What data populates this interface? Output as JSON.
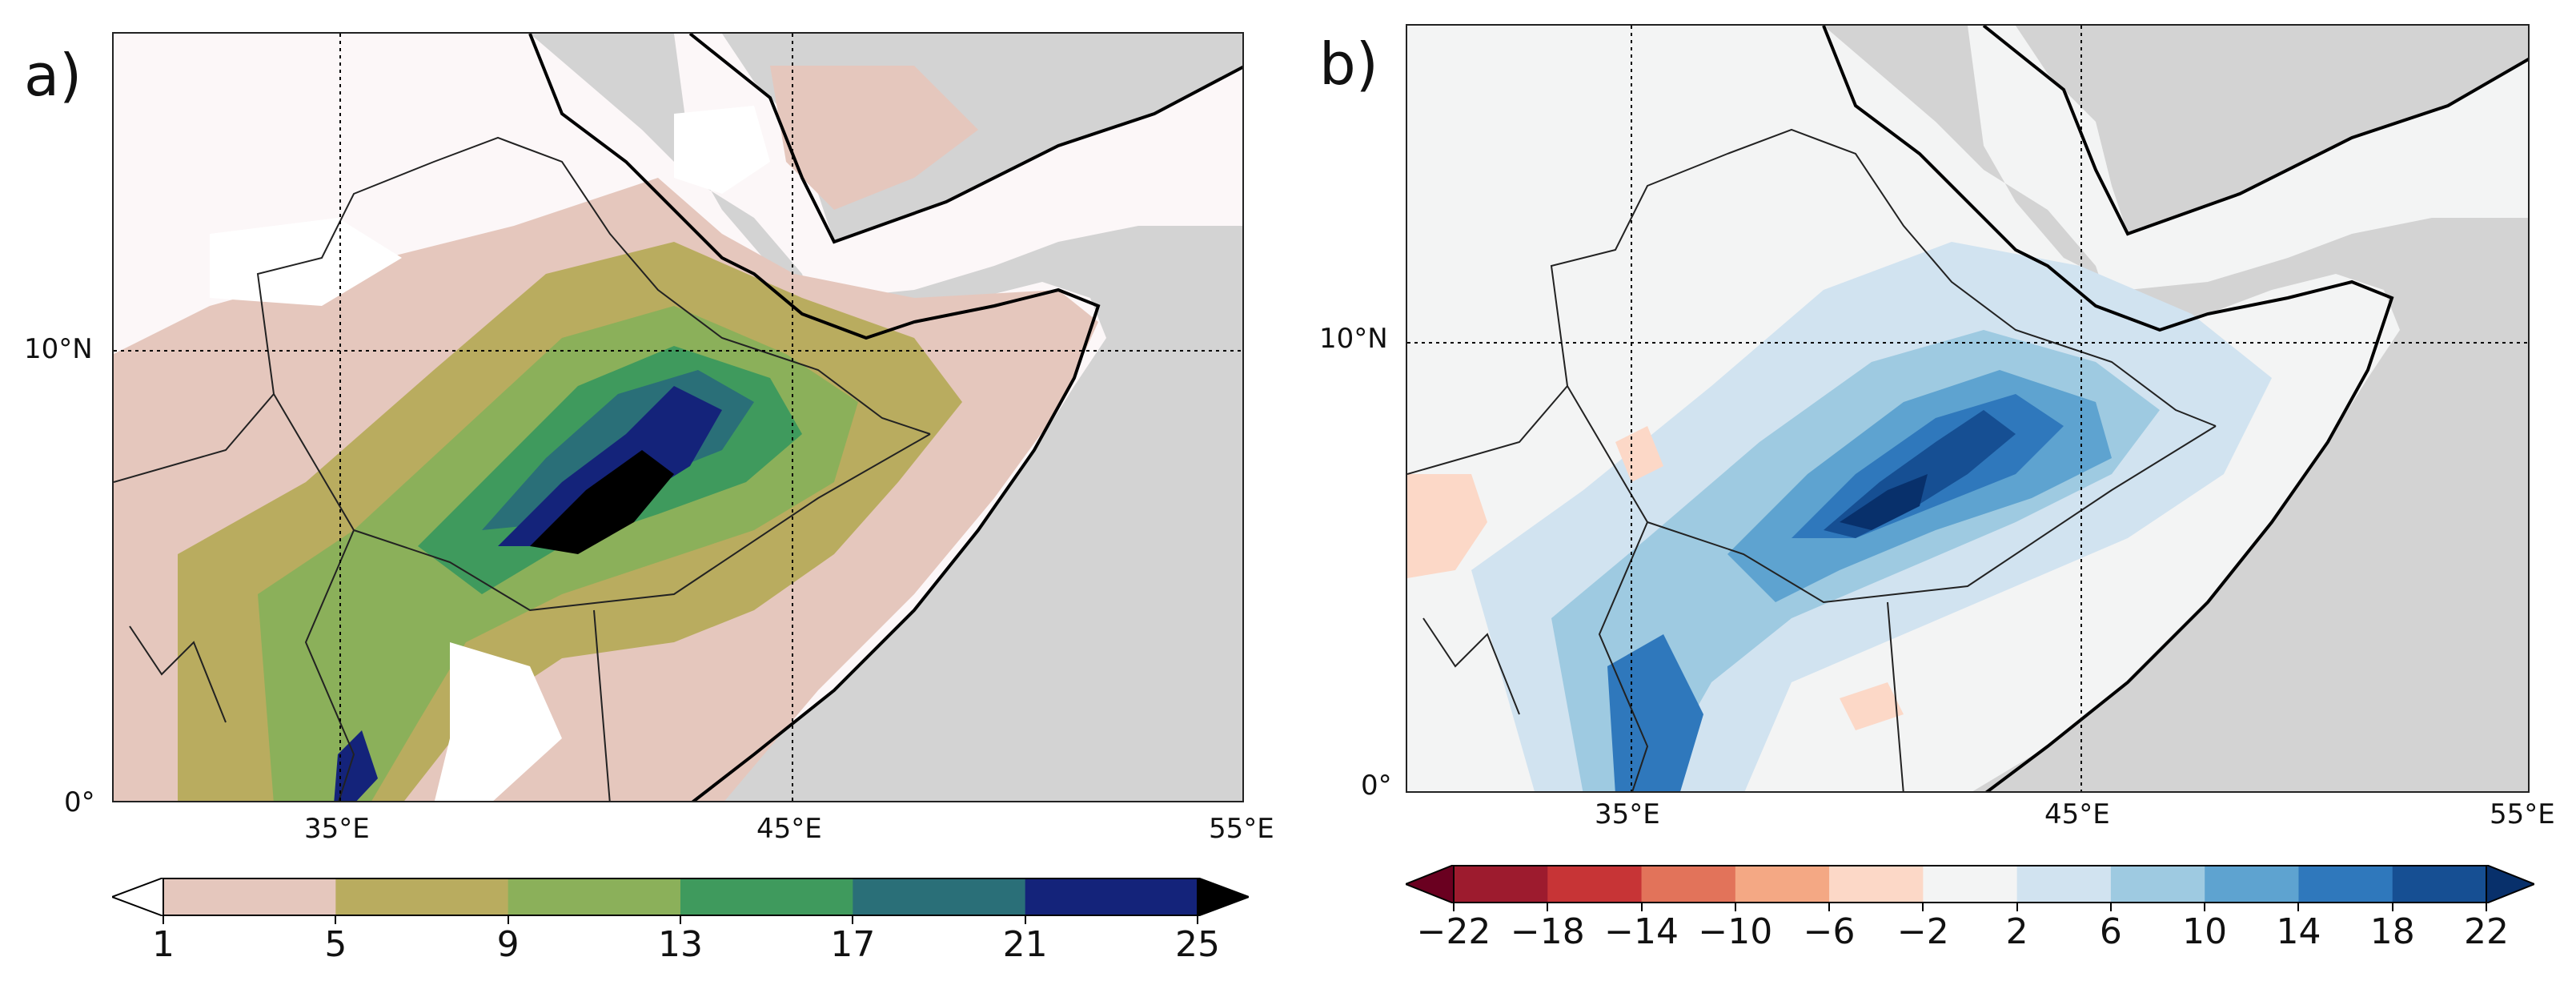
{
  "panels": [
    {
      "label": "a)",
      "lon_ticks": [
        "35°E",
        "45°E",
        "55°E"
      ],
      "lat_ticks": [
        "10°N",
        "0°"
      ],
      "colorbar": {
        "ticks": [
          "1",
          "5",
          "9",
          "13",
          "17",
          "21",
          "25"
        ],
        "levels": [
          1,
          5,
          9,
          13,
          17,
          21,
          25
        ],
        "colors": [
          "#e5c7bd",
          "#b9ac5f",
          "#8bb05a",
          "#3f9a5d",
          "#2a6f78",
          "#14237a"
        ],
        "under_color": "#ffffff",
        "over_color": "#000000"
      }
    },
    {
      "label": "b)",
      "lon_ticks": [
        "35°E",
        "45°E",
        "55°E"
      ],
      "lat_ticks": [
        "10°N",
        "0°"
      ],
      "colorbar": {
        "ticks": [
          "−22",
          "−18",
          "−14",
          "−10",
          "−6",
          "−2",
          "2",
          "6",
          "10",
          "14",
          "18",
          "22"
        ],
        "levels": [
          -22,
          -18,
          -14,
          -10,
          -6,
          -2,
          2,
          6,
          10,
          14,
          18,
          22
        ],
        "colors": [
          "#9d1b2e",
          "#c73436",
          "#e2735a",
          "#f4a884",
          "#fcd8c7",
          "#f3f4f4",
          "#d1e3f0",
          "#9ecae1",
          "#5ea3d0",
          "#2f78bc",
          "#164f93"
        ],
        "under_color": "#6a0020",
        "over_color": "#08306b"
      }
    }
  ],
  "colors": {
    "land_gray": "#d3d3d3",
    "coast": "#000000"
  }
}
